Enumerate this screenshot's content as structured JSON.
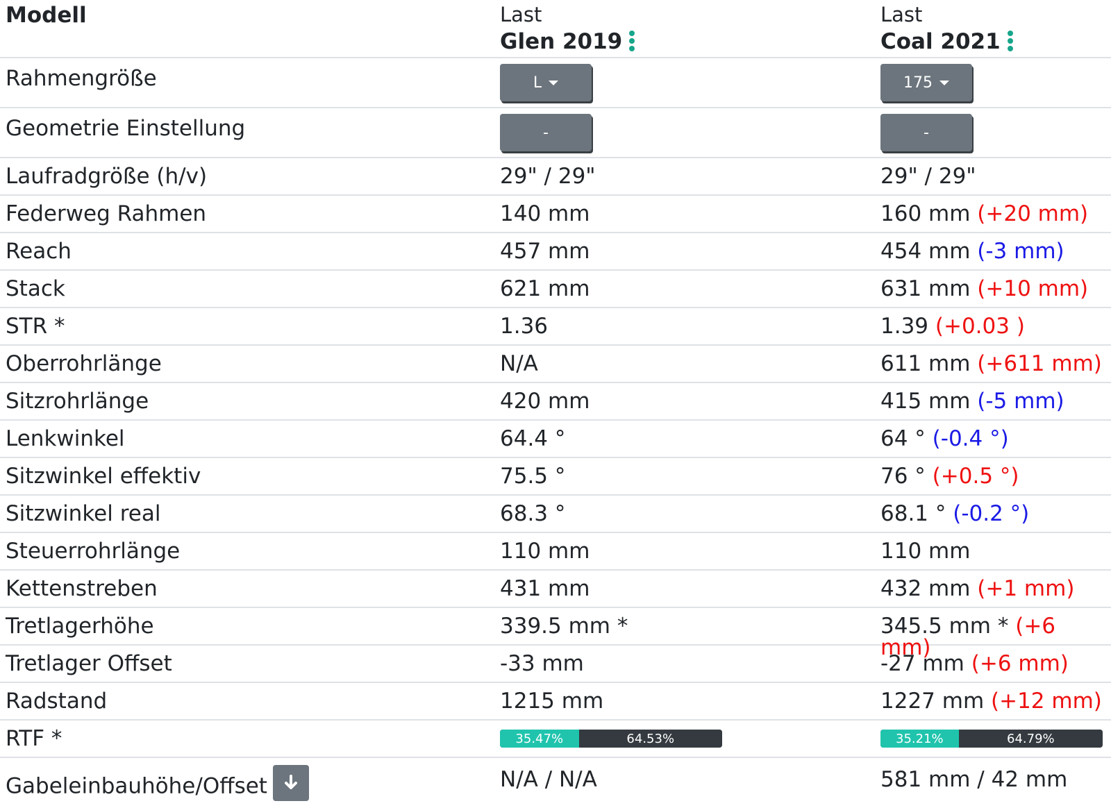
{
  "header": {
    "title": "Modell",
    "bikes": [
      {
        "sub": "Last",
        "model": "Glen 2019"
      },
      {
        "sub": "Last",
        "model": "Coal 2021"
      }
    ]
  },
  "selectors": [
    {
      "label": "Rahmengröße",
      "values": [
        "L",
        "175"
      ],
      "has_caret": true
    },
    {
      "label": "Geometrie Einstellung",
      "values": [
        "-",
        "-"
      ],
      "has_caret": false
    }
  ],
  "rows": [
    {
      "label": "Laufradgröße (h/v)",
      "v1": "29\" / 29\"",
      "v2": "29\" / 29\"",
      "diff": "",
      "dir": ""
    },
    {
      "label": "Federweg Rahmen",
      "v1": "140 mm",
      "v2": "160 mm",
      "diff": "(+20 mm)",
      "dir": "pos"
    },
    {
      "label": "Reach",
      "v1": "457 mm",
      "v2": "454 mm",
      "diff": "(-3 mm)",
      "dir": "neg"
    },
    {
      "label": "Stack",
      "v1": "621 mm",
      "v2": "631 mm",
      "diff": "(+10 mm)",
      "dir": "pos"
    },
    {
      "label": "STR *",
      "v1": "1.36",
      "v2": "1.39",
      "diff": "(+0.03 )",
      "dir": "pos"
    },
    {
      "label": "Oberrohrlänge",
      "v1": "N/A",
      "v2": "611 mm",
      "diff": "(+611 mm)",
      "dir": "pos"
    },
    {
      "label": "Sitzrohrlänge",
      "v1": "420 mm",
      "v2": "415 mm",
      "diff": "(-5 mm)",
      "dir": "neg"
    },
    {
      "label": "Lenkwinkel",
      "v1": "64.4 °",
      "v2": "64 °",
      "diff": "(-0.4 °)",
      "dir": "neg"
    },
    {
      "label": "Sitzwinkel effektiv",
      "v1": "75.5 °",
      "v2": "76 °",
      "diff": "(+0.5 °)",
      "dir": "pos"
    },
    {
      "label": "Sitzwinkel real",
      "v1": "68.3 °",
      "v2": "68.1 °",
      "diff": "(-0.2 °)",
      "dir": "neg"
    },
    {
      "label": "Steuerrohrlänge",
      "v1": "110 mm",
      "v2": "110 mm",
      "diff": "",
      "dir": ""
    },
    {
      "label": "Kettenstreben",
      "v1": "431 mm",
      "v2": "432 mm",
      "diff": "(+1 mm)",
      "dir": "pos"
    },
    {
      "label": "Tretlagerhöhe",
      "v1": "339.5 mm *",
      "v2": "345.5 mm *",
      "diff": "(+6 mm)",
      "dir": "pos"
    },
    {
      "label": "Tretlager Offset",
      "v1": "-33 mm",
      "v2": "-27 mm",
      "diff": "(+6 mm)",
      "dir": "pos"
    },
    {
      "label": "Radstand",
      "v1": "1215 mm",
      "v2": "1227 mm",
      "diff": "(+12 mm)",
      "dir": "pos"
    }
  ],
  "rtf": {
    "label": "RTF *",
    "bars": [
      {
        "front_pct": 35.47,
        "front": "35.47%",
        "rear": "64.53%"
      },
      {
        "front_pct": 35.21,
        "front": "35.21%",
        "rear": "64.79%"
      }
    ]
  },
  "fork": {
    "label": "Gabeleinbauhöhe/Offset",
    "v1": "N/A / N/A",
    "v2": "581 mm / 42 mm",
    "button_icon": "arrow-down-icon"
  },
  "colors": {
    "accent_teal": "#17a58b",
    "button_gray": "#6c757d",
    "diff_positive": "#ee1111",
    "diff_negative": "#1a1ae6",
    "bar_front": "#20c4ad",
    "bar_rear": "#343a40"
  }
}
